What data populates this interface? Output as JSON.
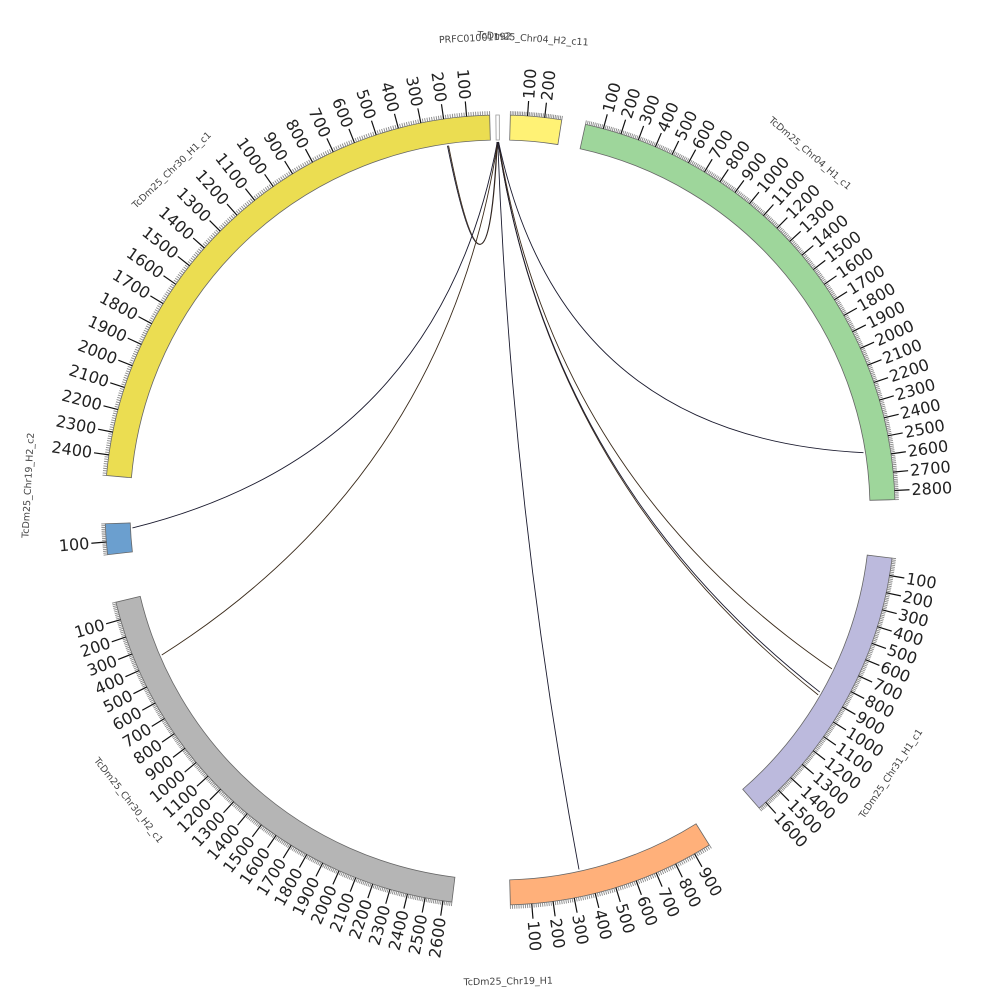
{
  "chart_data": {
    "type": "circos",
    "title": "",
    "segments": [
      {
        "id": "PRFC01",
        "label": "PRFC01001192",
        "length": 8,
        "color": "#ffffff",
        "ticks": []
      },
      {
        "id": "Chr04_H2_c11",
        "label": "TcDm25_Chr04_H2_c11",
        "length": 300,
        "color": "#fff275",
        "ticks": [
          100,
          200
        ]
      },
      {
        "id": "Chr04_H1_c1",
        "label": "TcDm25_Chr04_H1_c1",
        "length": 2850,
        "color": "#9ed69b",
        "ticks": [
          100,
          200,
          300,
          400,
          500,
          600,
          700,
          800,
          900,
          1000,
          1100,
          1200,
          1300,
          1400,
          1500,
          1600,
          1700,
          1800,
          1900,
          2000,
          2100,
          2200,
          2300,
          2400,
          2500,
          2600,
          2700,
          2800
        ]
      },
      {
        "id": "Chr31_H1_c1",
        "label": "TcDm25_Chr31_H1_c1",
        "length": 1650,
        "color": "#bcbadd",
        "ticks": [
          100,
          200,
          300,
          400,
          500,
          600,
          700,
          800,
          900,
          1000,
          1100,
          1200,
          1300,
          1400,
          1500,
          1600
        ]
      },
      {
        "id": "Chr19_H1",
        "label": "TcDm25_Chr19_H1",
        "length": 980,
        "color": "#ffb07a",
        "ticks": [
          100,
          200,
          300,
          400,
          500,
          600,
          700,
          800,
          900
        ]
      },
      {
        "id": "Chr30_H2_c1",
        "label": "TcDm25_Chr30_H2_c1",
        "length": 2650,
        "color": "#b5b5b5",
        "ticks": [
          100,
          200,
          300,
          400,
          500,
          600,
          700,
          800,
          900,
          1000,
          1100,
          1200,
          1300,
          1400,
          1500,
          1600,
          1700,
          1800,
          1900,
          2000,
          2100,
          2200,
          2300,
          2400,
          2500,
          2600
        ]
      },
      {
        "id": "Chr19_H2_c2",
        "label": "TcDm25_Chr19_H2_c2",
        "length": 170,
        "color": "#6b9fcf",
        "ticks": [
          100
        ]
      },
      {
        "id": "Chr30_H1_c1",
        "label": "TcDm25_Chr30_H1_c1",
        "length": 2490,
        "color": "#ebdd51",
        "ticks": [
          100,
          200,
          300,
          400,
          500,
          600,
          700,
          800,
          900,
          1000,
          1100,
          1200,
          1300,
          1400,
          1500,
          1600,
          1700,
          1800,
          1900,
          2000,
          2100,
          2200,
          2300,
          2400
        ]
      }
    ],
    "links": [
      {
        "from": "PRFC01",
        "from_pos": 2,
        "to": "Chr30_H1_c1",
        "to_pos": 200
      },
      {
        "from": "PRFC01",
        "from_pos": 3,
        "to": "Chr30_H1_c1",
        "to_pos": 195
      },
      {
        "from": "PRFC01",
        "from_pos": 3,
        "to": "Chr19_H2_c2",
        "to_pos": 30
      },
      {
        "from": "PRFC01",
        "from_pos": 4,
        "to": "Chr30_H2_c1",
        "to_pos": 370
      },
      {
        "from": "PRFC01",
        "from_pos": 4,
        "to": "Chr19_H1",
        "to_pos": 350
      },
      {
        "from": "PRFC01",
        "from_pos": 5,
        "to": "Chr31_H1_c1",
        "to_pos": 910
      },
      {
        "from": "PRFC01",
        "from_pos": 5,
        "to": "Chr31_H1_c1",
        "to_pos": 890
      },
      {
        "from": "PRFC01",
        "from_pos": 6,
        "to": "Chr31_H1_c1",
        "to_pos": 730
      },
      {
        "from": "PRFC01",
        "from_pos": 6,
        "to": "Chr04_H1_c1",
        "to_pos": 2570
      }
    ]
  }
}
